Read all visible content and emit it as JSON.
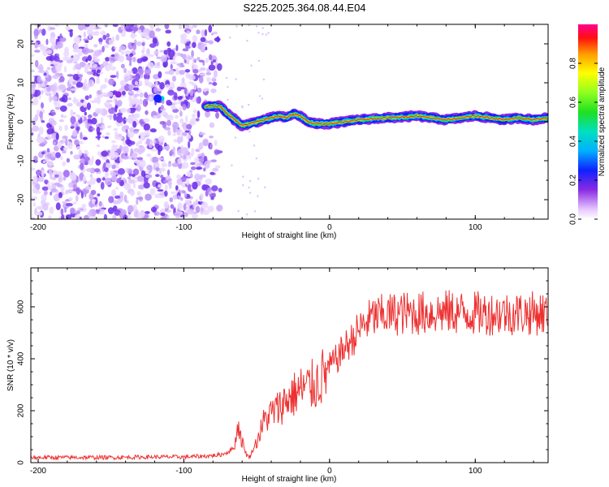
{
  "title": "S225.2025.364.08.44.E04",
  "colors": {
    "scatter": "#7a3cf0",
    "ridge_core": "#ff2020",
    "snr_line": "#ee3030",
    "axis": "#000000"
  },
  "chart_data": [
    {
      "type": "heatmap",
      "title": "S225.2025.364.08.44.E04",
      "xlabel": "Height of straight line (km)",
      "ylabel": "Frequency (Hz)",
      "xlim": [
        -205,
        150
      ],
      "ylim": [
        -25,
        25
      ],
      "xticks": [
        -200,
        -100,
        0,
        100
      ],
      "yticks": [
        -20,
        -10,
        0,
        10,
        20
      ],
      "noise_region_x": [
        -205,
        -75
      ],
      "ridge": {
        "x": [
          -85,
          -75,
          -70,
          -65,
          -60,
          -55,
          -50,
          -45,
          -40,
          -35,
          -30,
          -25,
          -20,
          -15,
          -10,
          0,
          10,
          20,
          30,
          40,
          50,
          60,
          70,
          80,
          90,
          100,
          110,
          120,
          130,
          140,
          150
        ],
        "y": [
          4,
          4,
          2,
          0.5,
          -1,
          -0.5,
          0,
          0.5,
          1,
          1.5,
          1,
          2,
          1.5,
          0,
          -0.5,
          -0.5,
          0,
          0.5,
          0.8,
          1,
          1.2,
          1.5,
          1,
          0.5,
          1,
          1.5,
          1,
          0.5,
          1,
          0.5,
          1
        ]
      },
      "colorbar": {
        "label": "Normalized spectral amplitude",
        "range": [
          0,
          1
        ],
        "ticks": [
          "0.0",
          "0.2",
          "0.4",
          "0.6",
          "0.8"
        ]
      }
    },
    {
      "type": "line",
      "xlabel": "Height of straight line (km)",
      "ylabel": "SNR (10 * v/v)",
      "xlim": [
        -205,
        150
      ],
      "ylim": [
        0,
        750
      ],
      "xticks": [
        -200,
        -100,
        0,
        100
      ],
      "yticks": [
        0,
        200,
        400,
        600
      ],
      "series": [
        {
          "name": "SNR",
          "x": [
            -205,
            -180,
            -150,
            -120,
            -100,
            -85,
            -75,
            -70,
            -65,
            -63,
            -60,
            -57,
            -55,
            -50,
            -45,
            -40,
            -35,
            -30,
            -25,
            -20,
            -15,
            -10,
            -5,
            0,
            5,
            10,
            15,
            20,
            25,
            30,
            40,
            50,
            60,
            80,
            100,
            120,
            150
          ],
          "values": [
            20,
            20,
            20,
            22,
            22,
            25,
            30,
            40,
            60,
            150,
            80,
            30,
            20,
            80,
            160,
            190,
            210,
            240,
            260,
            280,
            290,
            300,
            330,
            370,
            400,
            440,
            470,
            510,
            540,
            560,
            570,
            575,
            575,
            580,
            575,
            575,
            575
          ]
        }
      ]
    }
  ]
}
